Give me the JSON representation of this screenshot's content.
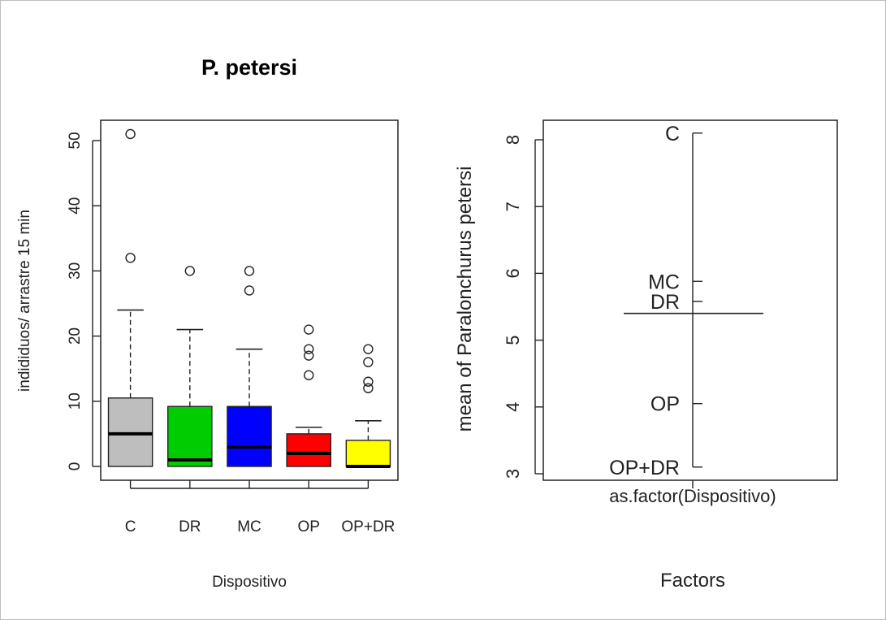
{
  "chart_data": [
    {
      "type": "box",
      "title": "P. petersi",
      "xlabel": "Dispositivo",
      "ylabel": "indididuos/ arrastre 15 min",
      "ylim": [
        0,
        52
      ],
      "yticks": [
        0,
        10,
        20,
        30,
        40,
        50
      ],
      "categories": [
        "C",
        "DR",
        "MC",
        "OP",
        "OP+DR"
      ],
      "boxes": [
        {
          "name": "C",
          "color": "#bebebe",
          "q1": 0,
          "median": 5,
          "q3": 10.5,
          "whisker_low": 0,
          "whisker_high": 24,
          "outliers": [
            32,
            51
          ]
        },
        {
          "name": "DR",
          "color": "#00cd00",
          "q1": 0,
          "median": 1,
          "q3": 9.2,
          "whisker_low": 0,
          "whisker_high": 21,
          "outliers": [
            30
          ]
        },
        {
          "name": "MC",
          "color": "#0000ff",
          "q1": 0,
          "median": 3,
          "q3": 9.2,
          "whisker_low": 0,
          "whisker_high": 18,
          "outliers": [
            27,
            30
          ]
        },
        {
          "name": "OP",
          "color": "#ff0000",
          "q1": 0,
          "median": 2,
          "q3": 5,
          "whisker_low": 0,
          "whisker_high": 6,
          "outliers": [
            14,
            17,
            18,
            21
          ]
        },
        {
          "name": "OP+DR",
          "color": "#ffff00",
          "q1": 0,
          "median": 0,
          "q3": 4,
          "whisker_low": 0,
          "whisker_high": 7,
          "outliers": [
            12,
            13,
            16,
            18
          ]
        }
      ]
    },
    {
      "type": "design-plot",
      "xlabel": "Factors",
      "factor_label": "as.factor(Dispositivo)",
      "ylabel": "mean of Paralonchurus petersi",
      "ylim": [
        3,
        8.3
      ],
      "yticks": [
        3,
        4,
        5,
        6,
        7,
        8
      ],
      "grand_mean": 5.4,
      "levels": [
        {
          "name": "C",
          "value": 8.1
        },
        {
          "name": "MC",
          "value": 5.88
        },
        {
          "name": "DR",
          "value": 5.58
        },
        {
          "name": "OP",
          "value": 4.05
        },
        {
          "name": "OP+DR",
          "value": 3.1
        }
      ]
    }
  ]
}
